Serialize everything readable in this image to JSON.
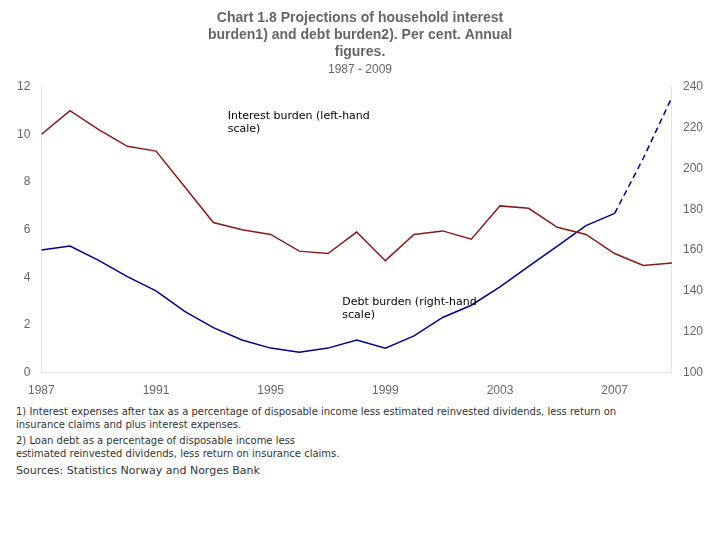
{
  "chart_data": {
    "type": "line",
    "title": [
      "Chart 1.8 Projections of household interest",
      "burden1) and debt burden2). Per cent. Annual",
      "figures."
    ],
    "subtitle": "1987 - 2009",
    "series": [
      {
        "color": "#8B1A1A",
        "line_style": "solid",
        "marker": "none",
        "axis": "y",
        "x": [
          1987,
          1988,
          1989,
          1990,
          1991,
          1992,
          1993,
          1994,
          1995,
          1996,
          1997,
          1998,
          1999,
          2000,
          2001,
          2002,
          2003,
          2004,
          2005,
          2006,
          2007,
          2007,
          2008,
          2009
        ],
        "values": [
          10.0,
          11.0,
          10.2,
          9.5,
          9.3,
          7.8,
          6.3,
          6.0,
          5.8,
          5.1,
          5.0,
          5.9,
          4.7,
          5.8,
          5.95,
          5.6,
          7.0,
          6.9,
          6.1,
          5.8,
          5.0,
          5.0,
          4.5,
          4.6
        ]
      },
      {
        "color": "#00008B",
        "line_style": "solid",
        "marker": "none",
        "axis": "y2",
        "x": [
          1987,
          1988,
          1989,
          1990,
          1991,
          1992,
          1993,
          1994,
          1995,
          1996,
          1997,
          1998,
          1999,
          2000,
          2001,
          2002,
          2003,
          2004,
          2005,
          2006,
          2007
        ],
        "values": [
          160,
          162,
          155,
          147,
          140,
          130,
          122,
          116,
          112,
          110,
          112,
          116,
          112,
          118,
          127,
          133,
          142,
          152,
          162,
          172,
          178
        ]
      },
      {
        "color": "#00008B",
        "line_style": "dashed",
        "marker": "none",
        "axis": "y2",
        "x": [
          2007,
          2008,
          2009
        ],
        "values": [
          178,
          205,
          235
        ]
      }
    ],
    "xlim": [
      1987,
      2009
    ],
    "xticks": [
      1987,
      1991,
      1995,
      1999,
      2003,
      2007
    ],
    "ylim": [
      0,
      12
    ],
    "yticks": [
      0,
      2,
      4,
      6,
      8,
      10,
      12
    ],
    "y2lim": [
      100,
      240
    ],
    "y2ticks": [
      100,
      120,
      140,
      160,
      180,
      200,
      220,
      240
    ],
    "grid": false,
    "annotations": [
      {
        "text": "Interest burden (left-hand\nscale)",
        "x": 1993.5,
        "y": 11.0
      },
      {
        "text": "Debt burden (right-hand\nscale)",
        "x": 1997.5,
        "y": 3.2
      }
    ],
    "footnotes": [
      "1) Interest expenses after tax as a percentage of disposable income less estimated reinvested dividends, less return on\ninsurance claims and plus interest expenses.",
      "2) Loan debt as a percentage of disposable income less\nestimated reinvested dividends, less return on insurance claims."
    ],
    "source": "Sources: Statistics Norway and Norges Bank"
  }
}
